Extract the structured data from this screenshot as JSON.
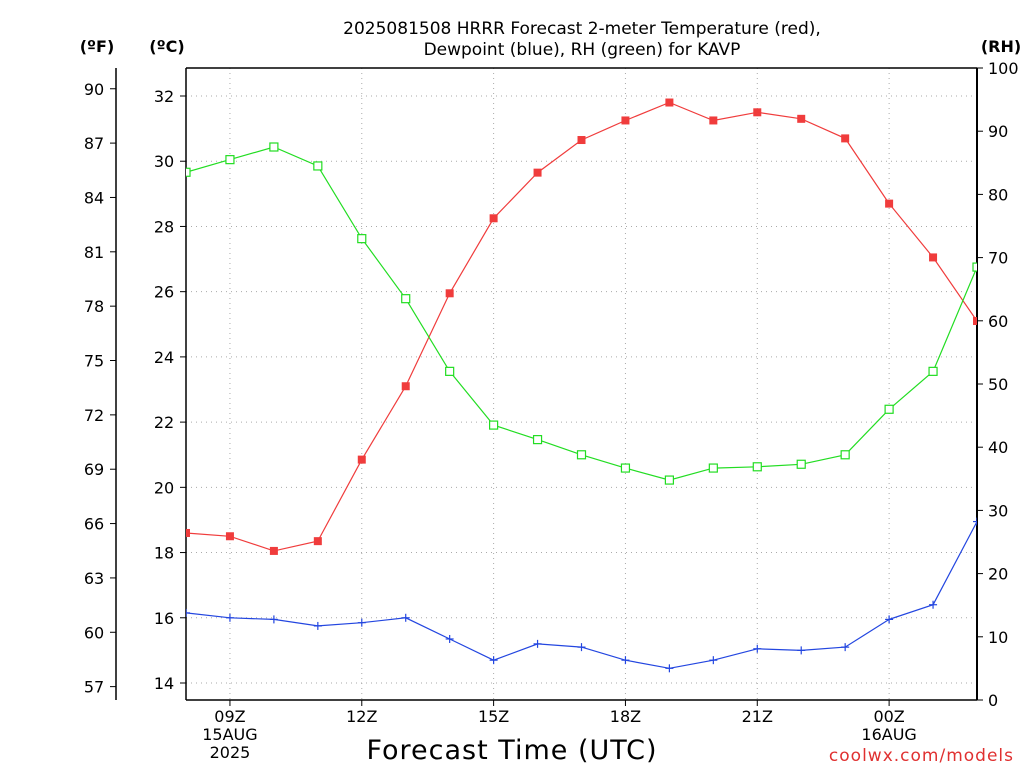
{
  "chart_data": {
    "type": "line",
    "title_lines": [
      "2025081508 HRRR Forecast 2-meter Temperature (red),",
      "Dewpoint (blue), RH (green) for KAVP"
    ],
    "xlabel": "Forecast Time (UTC)",
    "credit": "coolwx.com/models",
    "units": {
      "fahrenheit": "(ºF)",
      "celsius": "(ºC)",
      "rh": "(RH)"
    },
    "x_hours": [
      8,
      9,
      10,
      11,
      12,
      13,
      14,
      15,
      16,
      17,
      18,
      19,
      20,
      21,
      22,
      23,
      24,
      25,
      26
    ],
    "xlim": [
      8,
      26
    ],
    "x_ticks": [
      {
        "x": 9,
        "lines": [
          "09Z",
          "15AUG",
          "2025"
        ]
      },
      {
        "x": 12,
        "lines": [
          "12Z"
        ]
      },
      {
        "x": 15,
        "lines": [
          "15Z"
        ]
      },
      {
        "x": 18,
        "lines": [
          "18Z"
        ]
      },
      {
        "x": 21,
        "lines": [
          "21Z"
        ]
      },
      {
        "x": 24,
        "lines": [
          "00Z",
          "16AUG"
        ]
      }
    ],
    "celsius_axis": {
      "ticks": [
        14,
        16,
        18,
        20,
        22,
        24,
        26,
        28,
        30,
        32
      ]
    },
    "fahrenheit_axis": {
      "ticks": [
        57,
        60,
        63,
        66,
        69,
        72,
        75,
        78,
        81,
        84,
        87,
        90
      ]
    },
    "rh_axis": {
      "ylim": [
        0,
        100
      ],
      "ticks": [
        0,
        10,
        20,
        30,
        40,
        50,
        60,
        70,
        80,
        90,
        100
      ]
    },
    "grid": true,
    "series": [
      {
        "name": "Temperature",
        "axis": "celsius",
        "color": "#f03c3c",
        "marker": "filled-square",
        "values": [
          18.6,
          18.5,
          18.05,
          18.35,
          20.85,
          23.1,
          25.95,
          28.25,
          29.65,
          30.65,
          31.25,
          31.8,
          31.25,
          31.5,
          31.3,
          30.7,
          28.7,
          27.05,
          25.1
        ]
      },
      {
        "name": "Dewpoint",
        "axis": "celsius",
        "color": "#2346e0",
        "marker": "plus",
        "values": [
          16.15,
          16.0,
          15.95,
          15.75,
          15.85,
          16.0,
          15.35,
          14.7,
          15.2,
          15.1,
          14.7,
          14.45,
          14.7,
          15.05,
          15.0,
          15.1,
          15.95,
          16.4,
          18.95
        ]
      },
      {
        "name": "RH",
        "axis": "rh",
        "color": "#22dd22",
        "marker": "open-square",
        "values": [
          83.5,
          85.5,
          87.5,
          84.5,
          73.0,
          63.5,
          52.0,
          43.5,
          41.2,
          38.8,
          36.7,
          34.8,
          36.7,
          36.9,
          37.3,
          38.8,
          46.0,
          52.0,
          68.5
        ]
      }
    ]
  }
}
